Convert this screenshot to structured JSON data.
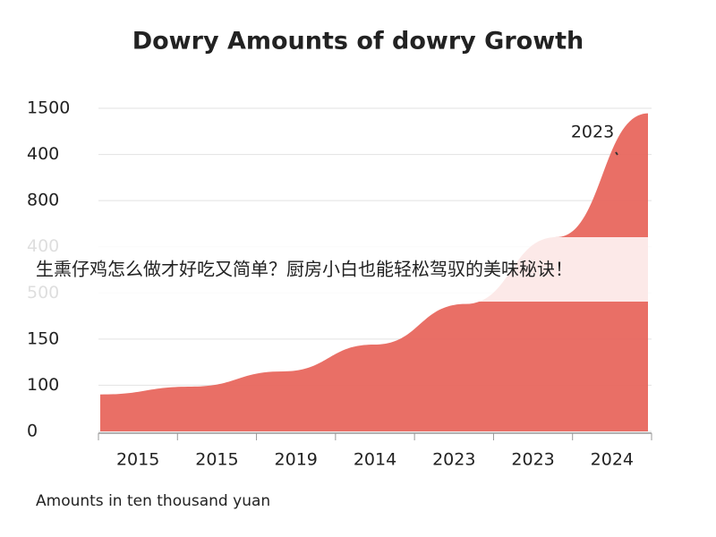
{
  "chart_data": {
    "type": "area",
    "title": "Dowry Amounts of dowry Growth",
    "categories": [
      "2015",
      "2015",
      "2019",
      "2014",
      "2023",
      "2023",
      "2024"
    ],
    "values": [
      0.8,
      0.97,
      1.3,
      1.88,
      2.76,
      4.21,
      6.89
    ],
    "color": "#e8675e",
    "ylim": [
      0,
      7
    ],
    "yticks": [
      {
        "value": 0,
        "label": "0"
      },
      {
        "value": 1,
        "label": "100"
      },
      {
        "value": 2,
        "label": "150"
      },
      {
        "value": 3,
        "label": "500"
      },
      {
        "value": 4,
        "label": "400"
      },
      {
        "value": 5,
        "label": "800"
      },
      {
        "value": 6,
        "label": "400"
      },
      {
        "value": 7,
        "label": "1500"
      }
    ],
    "grid": true,
    "annotation": "2023",
    "footnote": "Amounts in ten thousand yuan",
    "overlay_text": "生熏仔鸡怎么做才好吃又简单？厨房小白也能轻松驾驭的美味秘诀！"
  }
}
